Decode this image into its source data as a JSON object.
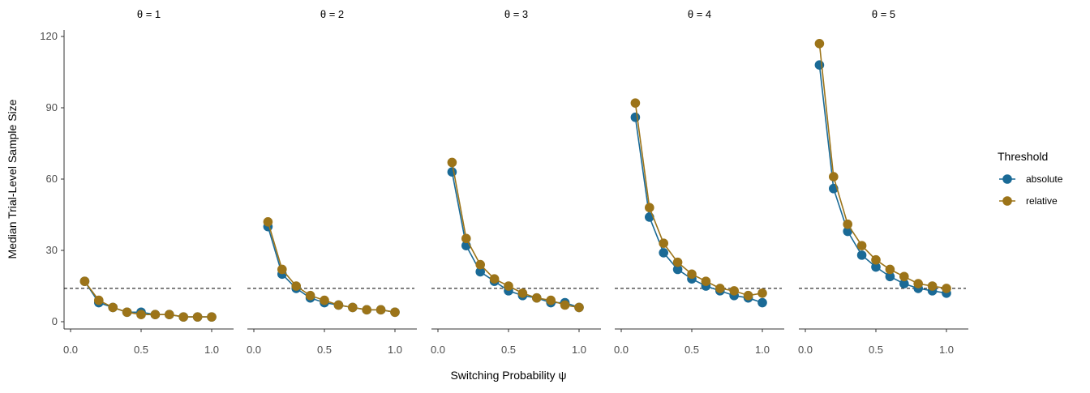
{
  "chart_data": {
    "type": "line",
    "xlabel": "Switching Probability ψ",
    "ylabel": "Median Trial-Level Sample Size",
    "xlim": [
      0.0,
      1.0
    ],
    "ylim": [
      0,
      120
    ],
    "x_ticks": [
      "0.0",
      "0.5",
      "1.0"
    ],
    "y_ticks": [
      "0",
      "30",
      "60",
      "90",
      "120"
    ],
    "grid": false,
    "reference_line": {
      "y": 14,
      "style": "dashed"
    },
    "legend": {
      "title": "Threshold",
      "position": "right",
      "entries": [
        {
          "label": "absolute",
          "color": "#1a6a96"
        },
        {
          "label": "relative",
          "color": "#9c7419"
        }
      ]
    },
    "x": [
      0.1,
      0.2,
      0.3,
      0.4,
      0.5,
      0.6,
      0.7,
      0.8,
      0.9,
      1.0
    ],
    "panels": [
      {
        "title": "θ = 1",
        "series": [
          {
            "name": "absolute",
            "values": [
              17,
              8,
              6,
              4,
              4,
              3,
              3,
              2,
              2,
              2
            ]
          },
          {
            "name": "relative",
            "values": [
              17,
              9,
              6,
              4,
              3,
              3,
              3,
              2,
              2,
              2
            ]
          }
        ]
      },
      {
        "title": "θ = 2",
        "series": [
          {
            "name": "absolute",
            "values": [
              40,
              20,
              14,
              10,
              8,
              7,
              6,
              5,
              5,
              4
            ]
          },
          {
            "name": "relative",
            "values": [
              42,
              22,
              15,
              11,
              9,
              7,
              6,
              5,
              5,
              4
            ]
          }
        ]
      },
      {
        "title": "θ = 3",
        "series": [
          {
            "name": "absolute",
            "values": [
              63,
              32,
              21,
              17,
              13,
              11,
              10,
              8,
              8,
              6
            ]
          },
          {
            "name": "relative",
            "values": [
              67,
              35,
              24,
              18,
              15,
              12,
              10,
              9,
              7,
              6
            ]
          }
        ]
      },
      {
        "title": "θ = 4",
        "series": [
          {
            "name": "absolute",
            "values": [
              86,
              44,
              29,
              22,
              18,
              15,
              13,
              11,
              10,
              8
            ]
          },
          {
            "name": "relative",
            "values": [
              92,
              48,
              33,
              25,
              20,
              17,
              14,
              13,
              11,
              12
            ]
          }
        ]
      },
      {
        "title": "θ = 5",
        "series": [
          {
            "name": "absolute",
            "values": [
              108,
              56,
              38,
              28,
              23,
              19,
              16,
              14,
              13,
              12
            ]
          },
          {
            "name": "relative",
            "values": [
              117,
              61,
              41,
              32,
              26,
              22,
              19,
              16,
              15,
              14
            ]
          }
        ]
      }
    ]
  }
}
